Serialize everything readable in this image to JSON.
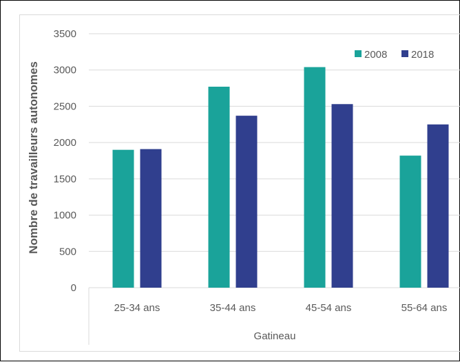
{
  "chart_data": {
    "type": "bar",
    "title": "",
    "xlabel": "",
    "ylabel": "Nombre de travailleurs autonomes",
    "group_label": "Gatineau",
    "categories": [
      "25-34 ans",
      "35-44 ans",
      "45-54 ans",
      "55-64 ans"
    ],
    "series": [
      {
        "name": "2008",
        "color": "#1aa39a",
        "values": [
          1900,
          2770,
          3040,
          1820
        ]
      },
      {
        "name": "2018",
        "color": "#303f8e",
        "values": [
          1910,
          2370,
          2530,
          2250
        ]
      }
    ],
    "yticks": [
      "0",
      "500",
      "1000",
      "1500",
      "2000",
      "2500",
      "3000",
      "3500"
    ],
    "ylim": [
      0,
      3500
    ],
    "grid": true,
    "legend_position": "top-right"
  }
}
